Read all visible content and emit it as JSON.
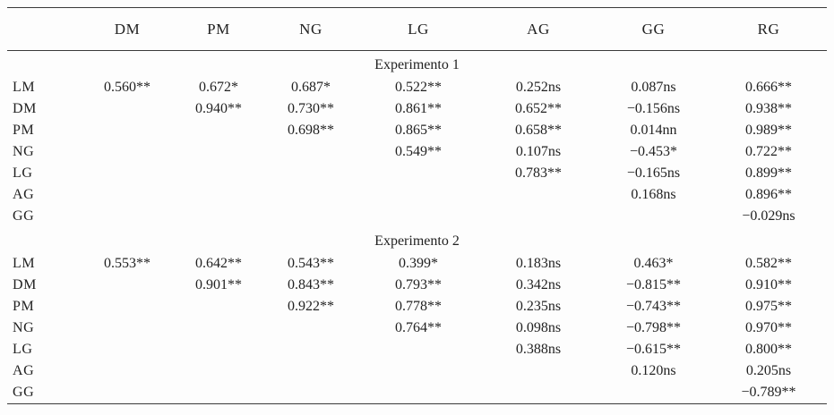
{
  "colors": {
    "text": "#222222",
    "rule": "#3a3a3a",
    "background": "#fdfdfd"
  },
  "table": {
    "columns": [
      "",
      "DM",
      "PM",
      "NG",
      "LG",
      "AG",
      "GG",
      "RG"
    ],
    "sections": [
      {
        "title": "Experimento 1",
        "rows": [
          {
            "label": "LM",
            "cells": [
              "0.560**",
              "0.672*",
              "0.687*",
              "0.522**",
              "0.252ns",
              "0.087ns",
              "0.666**"
            ]
          },
          {
            "label": "DM",
            "cells": [
              "",
              "0.940**",
              "0.730**",
              "0.861**",
              "0.652**",
              "−0.156ns",
              "0.938**"
            ]
          },
          {
            "label": "PM",
            "cells": [
              "",
              "",
              "0.698**",
              "0.865**",
              "0.658**",
              "0.014nn",
              "0.989**"
            ]
          },
          {
            "label": "NG",
            "cells": [
              "",
              "",
              "",
              "0.549**",
              "0.107ns",
              "−0.453*",
              "0.722**"
            ]
          },
          {
            "label": "LG",
            "cells": [
              "",
              "",
              "",
              "",
              "0.783**",
              "−0.165ns",
              "0.899**"
            ]
          },
          {
            "label": "AG",
            "cells": [
              "",
              "",
              "",
              "",
              "",
              "0.168ns",
              "0.896**"
            ]
          },
          {
            "label": "GG",
            "cells": [
              "",
              "",
              "",
              "",
              "",
              "",
              "−0.029ns"
            ]
          }
        ]
      },
      {
        "title": "Experimento 2",
        "rows": [
          {
            "label": "LM",
            "cells": [
              "0.553**",
              "0.642**",
              "0.543**",
              "0.399*",
              "0.183ns",
              "0.463*",
              "0.582**"
            ]
          },
          {
            "label": "DM",
            "cells": [
              "",
              "0.901**",
              "0.843**",
              "0.793**",
              "0.342ns",
              "−0.815**",
              "0.910**"
            ]
          },
          {
            "label": "PM",
            "cells": [
              "",
              "",
              "0.922**",
              "0.778**",
              "0.235ns",
              "−0.743**",
              "0.975**"
            ]
          },
          {
            "label": "NG",
            "cells": [
              "",
              "",
              "",
              "0.764**",
              "0.098ns",
              "−0.798**",
              "0.970**"
            ]
          },
          {
            "label": "LG",
            "cells": [
              "",
              "",
              "",
              "",
              "0.388ns",
              "−0.615**",
              "0.800**"
            ]
          },
          {
            "label": "AG",
            "cells": [
              "",
              "",
              "",
              "",
              "",
              "0.120ns",
              "0.205ns"
            ]
          },
          {
            "label": "GG",
            "cells": [
              "",
              "",
              "",
              "",
              "",
              "",
              "−0.789**"
            ]
          }
        ]
      }
    ]
  }
}
